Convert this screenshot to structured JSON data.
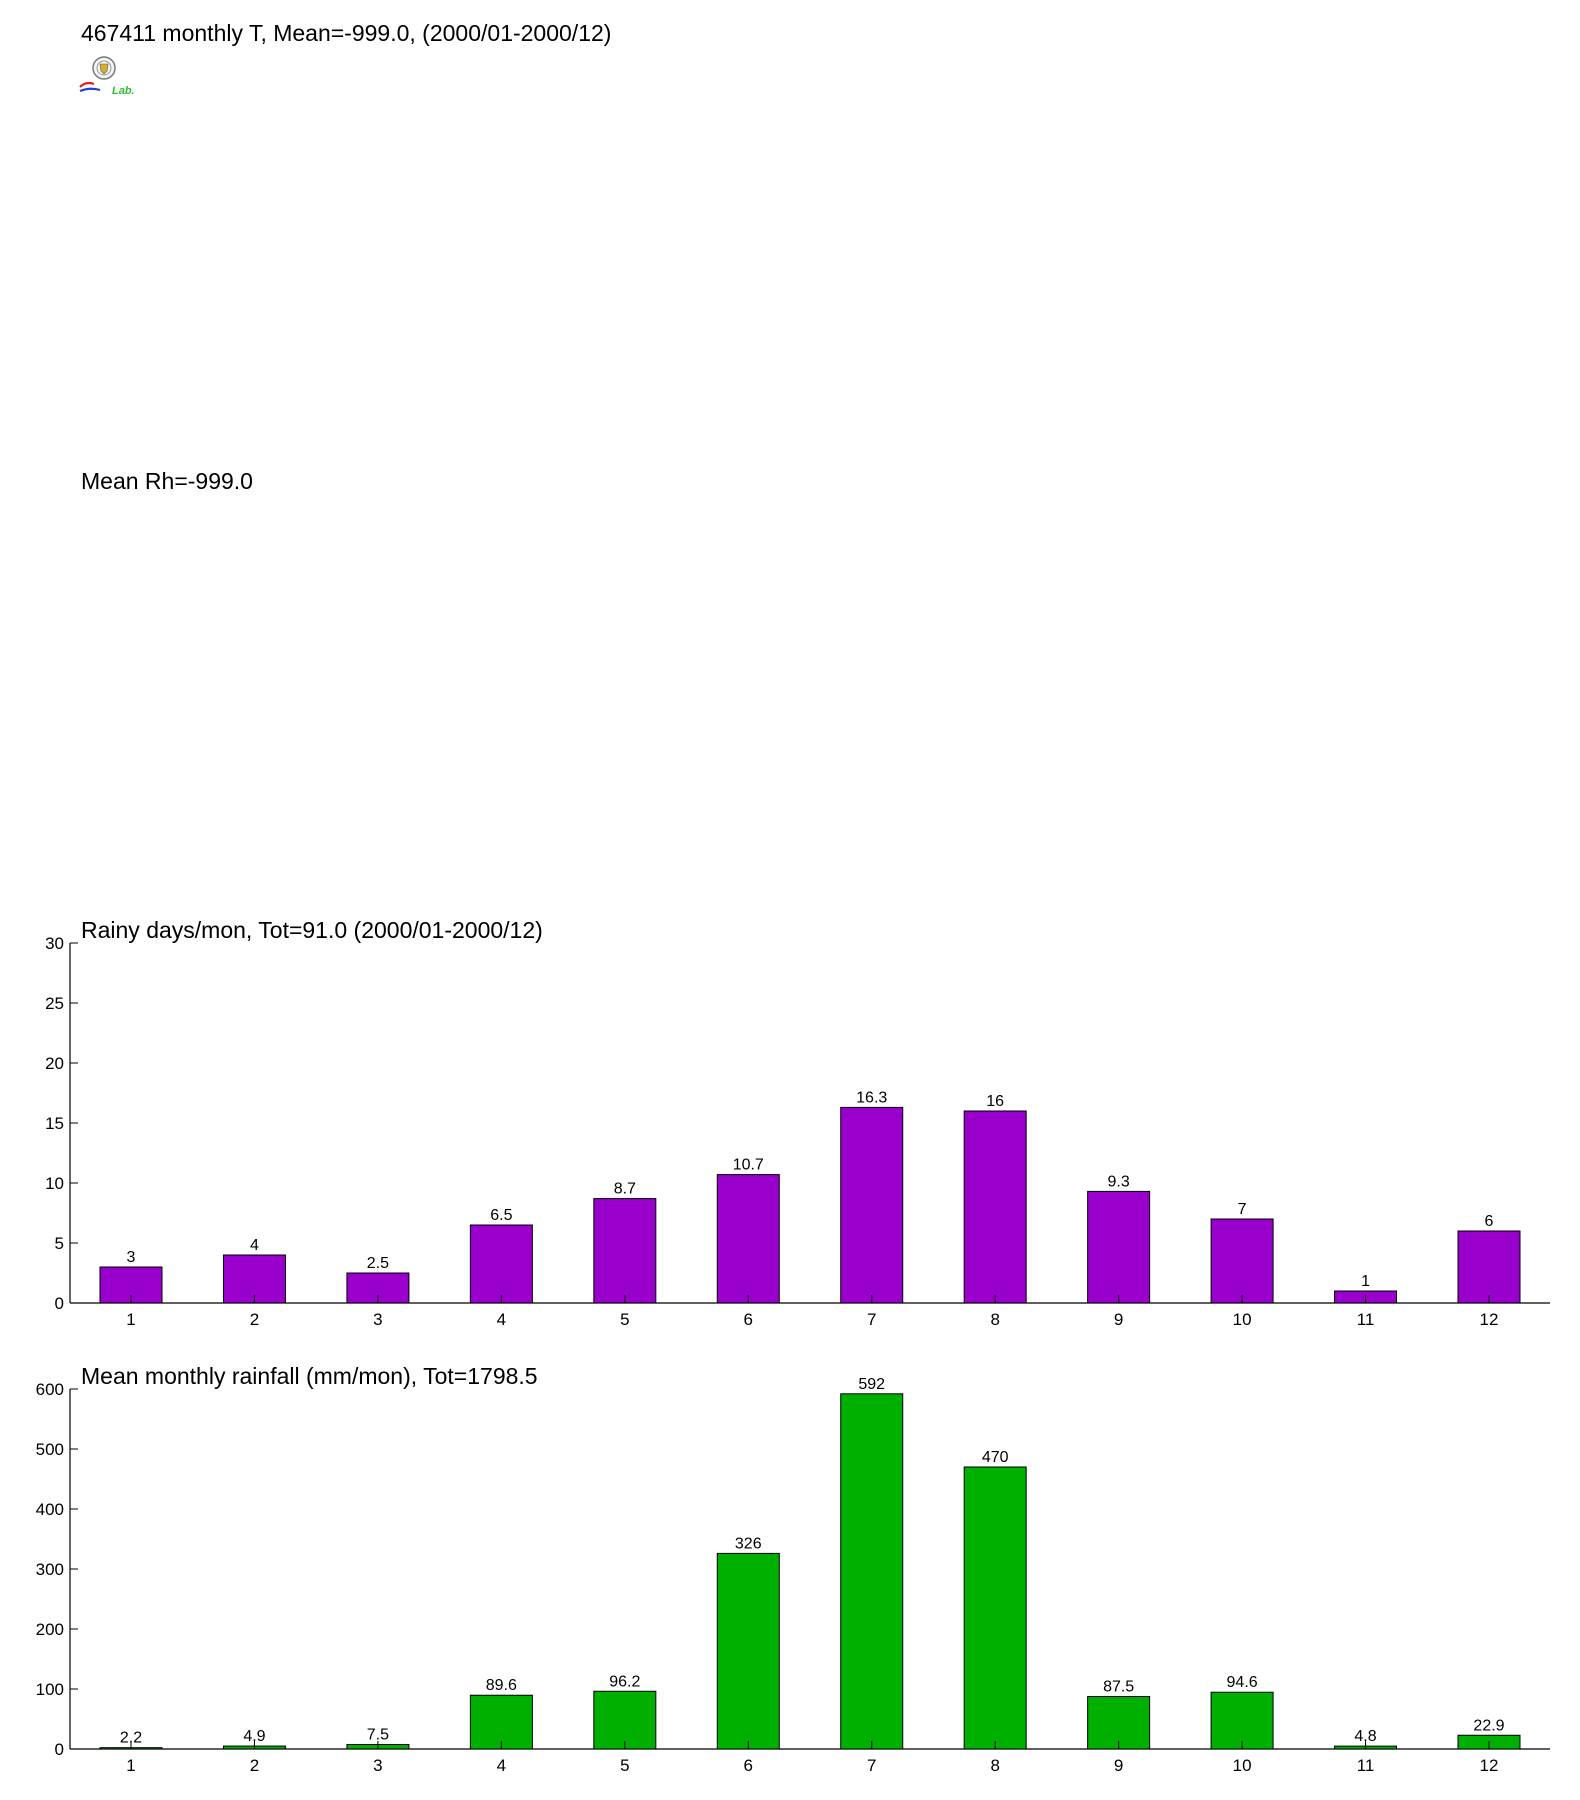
{
  "header": {
    "title": "467411 monthly T, Mean=-999.0, (2000/01-2000/12)",
    "rh_title": "Mean Rh=-999.0",
    "logo_label": "Lab."
  },
  "chart_data": [
    {
      "type": "bar",
      "title": "Rainy days/mon, Tot=91.0 (2000/01-2000/12)",
      "xlabel": "",
      "ylabel": "",
      "categories": [
        "1",
        "2",
        "3",
        "4",
        "5",
        "6",
        "7",
        "8",
        "9",
        "10",
        "11",
        "12"
      ],
      "values": [
        3,
        4,
        2.5,
        6.5,
        8.7,
        10.7,
        16.3,
        16,
        9.3,
        7,
        1,
        6
      ],
      "labels": [
        "3",
        "4",
        "2.5",
        "6.5",
        "8.7",
        "10.7",
        "16.3",
        "16",
        "9.3",
        "7",
        "1",
        "6"
      ],
      "ylim": [
        0,
        30
      ],
      "yticks": [
        0,
        5,
        10,
        15,
        20,
        25,
        30
      ],
      "color": "#9900cc",
      "grid": false
    },
    {
      "type": "bar",
      "title": "Mean monthly rainfall (mm/mon), Tot=1798.5",
      "xlabel": "",
      "ylabel": "",
      "categories": [
        "1",
        "2",
        "3",
        "4",
        "5",
        "6",
        "7",
        "8",
        "9",
        "10",
        "11",
        "12"
      ],
      "values": [
        2.2,
        4.9,
        7.5,
        89.6,
        96.2,
        326,
        592,
        470,
        87.5,
        94.6,
        4.8,
        22.9
      ],
      "labels": [
        "2.2",
        "4.9",
        "7.5",
        "89.6",
        "96.2",
        "326",
        "592",
        "470",
        "87.5",
        "94.6",
        "4.8",
        "22.9"
      ],
      "ylim": [
        0,
        600
      ],
      "yticks": [
        0,
        100,
        200,
        300,
        400,
        500,
        600
      ],
      "color": "#00b000",
      "grid": false
    }
  ]
}
